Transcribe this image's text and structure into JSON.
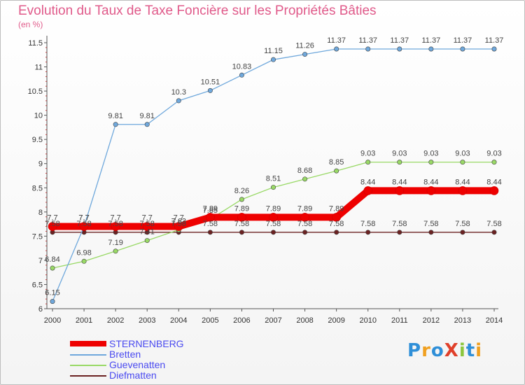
{
  "header": {
    "title": "Evolution du Taux de Taxe Foncière sur les Propriétés Bâties",
    "unit": "(en %)"
  },
  "logo": {
    "text": "ProXiti"
  },
  "colors": {
    "title": "#e05a8a",
    "legend_text": "#4a4af0",
    "axis": "#555555"
  },
  "chart_data": {
    "type": "line",
    "title": "Evolution du Taux de Taxe Foncière sur les Propriétés Bâties",
    "ylabel": "(en %)",
    "xlabel": "",
    "x": [
      "2000",
      "2001",
      "2002",
      "2003",
      "2004",
      "2005",
      "2006",
      "2007",
      "2008",
      "2009",
      "2010",
      "2011",
      "2012",
      "2013",
      "2014"
    ],
    "ylim": [
      6,
      11.5
    ],
    "yticks": [
      "6",
      "6.5",
      "7",
      "7.5",
      "8",
      "8.5",
      "9",
      "9.5",
      "10",
      "10.5",
      "11",
      "11.5"
    ],
    "grid": false,
    "legend_position": "bottom-left",
    "series": [
      {
        "name": "Diefmatten",
        "color": "#6b2222",
        "values": [
          7.58,
          7.58,
          7.58,
          7.58,
          7.58,
          7.58,
          7.58,
          7.58,
          7.58,
          7.58,
          7.58,
          7.58,
          7.58,
          7.58,
          7.58
        ],
        "labels": [
          "7.58",
          "7.58",
          "7.58",
          "7.58",
          "7.58",
          "7.58",
          "7.58",
          "7.58",
          "7.58",
          "7.58",
          "7.58",
          "7.58",
          "7.58",
          "7.58",
          "7.58"
        ]
      },
      {
        "name": "Guevenatten",
        "color": "#99d966",
        "values": [
          6.84,
          6.98,
          7.19,
          7.41,
          7.63,
          7.85,
          8.26,
          8.51,
          8.68,
          8.85,
          9.03,
          9.03,
          9.03,
          9.03,
          9.03
        ],
        "labels": [
          "6.84",
          "6.98",
          "7.19",
          "7.41",
          "7.63",
          "7.85",
          "8.26",
          "8.51",
          "8.68",
          "8.85",
          "9.03",
          "9.03",
          "9.03",
          "9.03",
          "9.03"
        ]
      },
      {
        "name": "Bretten",
        "color": "#6fa8dc",
        "values": [
          6.15,
          7.7,
          9.81,
          9.81,
          10.3,
          10.51,
          10.83,
          11.15,
          11.26,
          11.37,
          11.37,
          11.37,
          11.37,
          11.37,
          11.37
        ],
        "labels": [
          "6.15",
          "7.7",
          "9.81",
          "9.81",
          "10.3",
          "10.51",
          "10.83",
          "11.15",
          "11.26",
          "11.37",
          "11.37",
          "11.37",
          "11.37",
          "11.37",
          "11.37"
        ]
      },
      {
        "name": "STERNENBERG",
        "color": "#ee0000",
        "values": [
          7.7,
          7.7,
          7.7,
          7.7,
          7.7,
          7.89,
          7.89,
          7.89,
          7.89,
          7.89,
          8.44,
          8.44,
          8.44,
          8.44,
          8.44
        ],
        "labels": [
          "7.7",
          "7.7",
          "7.7",
          "7.7",
          "7.7",
          "7.89",
          "7.89",
          "7.89",
          "7.89",
          "7.89",
          "8.44",
          "8.44",
          "8.44",
          "8.44",
          "8.44"
        ]
      }
    ],
    "legend": [
      "STERNENBERG",
      "Bretten",
      "Guevenatten",
      "Diefmatten"
    ]
  }
}
